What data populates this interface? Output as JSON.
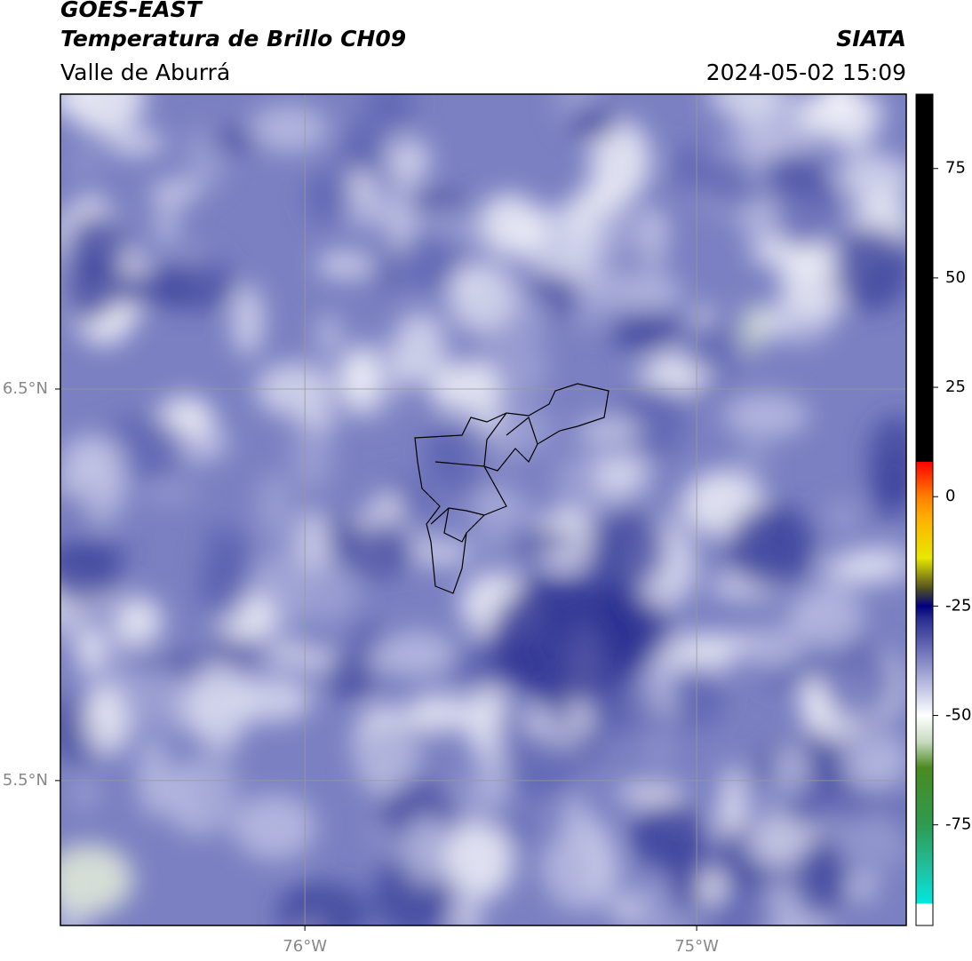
{
  "header": {
    "title": "GOES-EAST",
    "subtitle": "Temperatura de Brillo CH09",
    "org": "SIATA",
    "region": "Valle de Aburrá",
    "datetime": "2024-05-02 15:09"
  },
  "map": {
    "xlim": [
      -76.624,
      -74.465
    ],
    "ylim": [
      5.13,
      7.253
    ],
    "xticks": [
      {
        "value": -76,
        "label": "76°W"
      },
      {
        "value": -75,
        "label": "75°W"
      }
    ],
    "yticks": [
      {
        "value": 6.5,
        "label": "6.5°N"
      },
      {
        "value": 5.5,
        "label": "5.5°N"
      }
    ],
    "grid": true
  },
  "colorbar": {
    "lim": [
      -98,
      92
    ],
    "ticks": [
      75,
      50,
      25,
      0,
      -25,
      -50,
      -75
    ],
    "stops": [
      {
        "value": -98,
        "color": "#ffffff"
      },
      {
        "value": -93,
        "color": "#ffffff"
      },
      {
        "value": -93,
        "color": "#00e8e0"
      },
      {
        "value": -85,
        "color": "#20c0a0"
      },
      {
        "value": -75,
        "color": "#2e9a50"
      },
      {
        "value": -62,
        "color": "#4a8a20"
      },
      {
        "value": -56,
        "color": "#c8dcc0"
      },
      {
        "value": -50,
        "color": "#ffffff"
      },
      {
        "value": -42,
        "color": "#b0b4dc"
      },
      {
        "value": -35,
        "color": "#6a70b8"
      },
      {
        "value": -28,
        "color": "#2a2e90"
      },
      {
        "value": -25,
        "color": "#000080"
      },
      {
        "value": -21,
        "color": "#505020"
      },
      {
        "value": -14,
        "color": "#e8e800"
      },
      {
        "value": -5,
        "color": "#ffb000"
      },
      {
        "value": 0,
        "color": "#ff8000"
      },
      {
        "value": 8,
        "color": "#ff0000"
      },
      {
        "value": 8,
        "color": "#000000"
      },
      {
        "value": 92,
        "color": "#000000"
      }
    ]
  }
}
